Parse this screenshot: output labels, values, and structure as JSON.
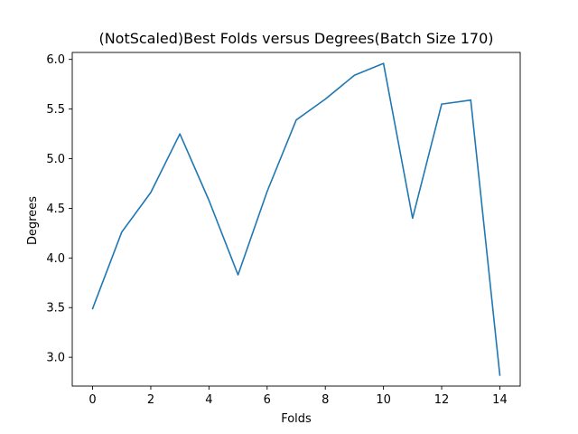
{
  "chart_data": {
    "type": "line",
    "title": "(NotScaled)Best Folds versus Degrees(Batch Size 170)",
    "xlabel": "Folds",
    "ylabel": "Degrees",
    "x": [
      0,
      1,
      2,
      3,
      4,
      5,
      6,
      7,
      8,
      9,
      10,
      11,
      12,
      13,
      14
    ],
    "series": [
      {
        "values": [
          3.49,
          4.26,
          4.66,
          5.25,
          4.58,
          3.83,
          4.67,
          5.39,
          5.6,
          5.84,
          5.96,
          4.4,
          5.55,
          5.59,
          2.82
        ],
        "color": "#1f77b4"
      }
    ],
    "xlim": [
      -0.7,
      14.7
    ],
    "ylim": [
      2.71,
      6.07
    ],
    "xticks": [
      0,
      2,
      4,
      6,
      8,
      10,
      12,
      14
    ],
    "yticks": [
      3.0,
      3.5,
      4.0,
      4.5,
      5.0,
      5.5,
      6.0
    ],
    "ytick_labels": [
      "3.0",
      "3.5",
      "4.0",
      "4.5",
      "5.0",
      "5.5",
      "6.0"
    ],
    "grid": false,
    "legend": "none"
  }
}
